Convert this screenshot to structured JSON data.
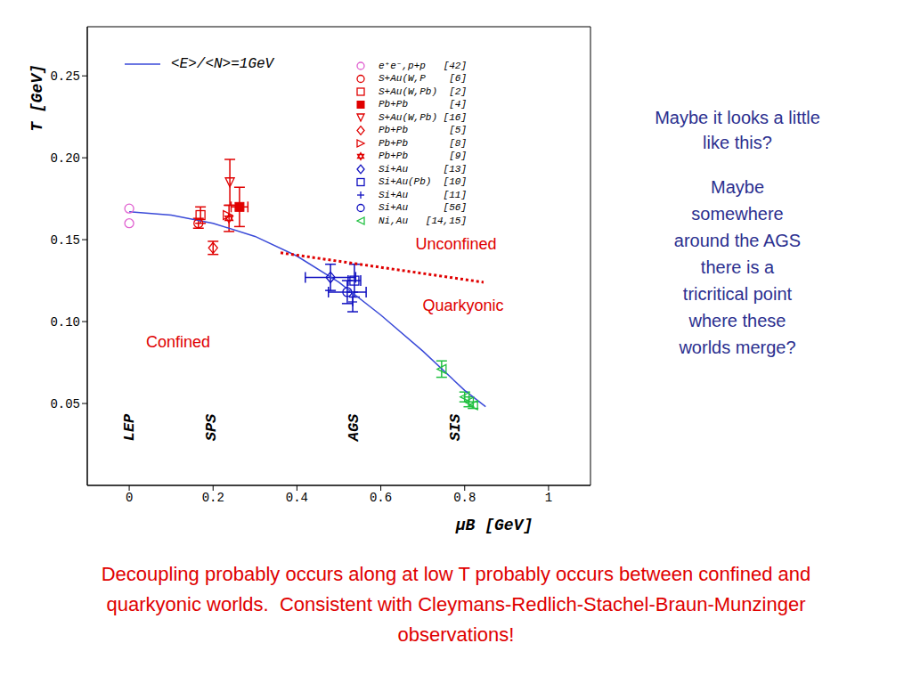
{
  "chart_data": {
    "type": "scatter",
    "x_label": "μB [GeV]",
    "y_label": "T [GeV]",
    "xlim": [
      -0.1,
      1.1
    ],
    "xticks": [
      0,
      0.2,
      0.4,
      0.6,
      0.8,
      1
    ],
    "ylim": [
      0,
      0.28
    ],
    "yticks": [
      {
        "value": 0.05,
        "label": "0.05"
      },
      {
        "value": 0.1,
        "label": "0.10"
      },
      0.15,
      {
        "value": 0.2,
        "label": "0.20"
      },
      0.25
    ],
    "series": [
      {
        "name": "<E>/<N>=1GeV",
        "type": "line",
        "color": "#3a4ad8",
        "line_style": "solid",
        "x": [
          0,
          0.1,
          0.2,
          0.3,
          0.4,
          0.5,
          0.6,
          0.7,
          0.8,
          0.85
        ],
        "values": [
          0.167,
          0.165,
          0.16,
          0.152,
          0.14,
          0.124,
          0.104,
          0.082,
          0.058,
          0.048
        ]
      },
      {
        "type": "line",
        "color": "#e00000",
        "line_style": "dotted",
        "x": [
          0.361,
          0.845
        ],
        "values": [
          0.142,
          0.124
        ]
      },
      {
        "name": "e⁺e⁻,p+p   [42]",
        "type": "scatter",
        "marker": "circle",
        "color": "#e060d0",
        "x": [
          0,
          0
        ],
        "values": [
          0.169,
          0.16
        ]
      },
      {
        "name": "S+Au(W,P    [6]",
        "type": "scatter",
        "marker": "circle",
        "color": "#e00000",
        "x": [
          0.165
        ],
        "values": [
          0.16
        ],
        "yerr": [
          0.003
        ]
      },
      {
        "name": "S+Au(W,Pb)  [2]",
        "type": "scatter",
        "marker": "square",
        "color": "#e00000",
        "x": [
          0.17
        ],
        "values": [
          0.165
        ],
        "yerr": [
          0.005
        ]
      },
      {
        "name": "Pb+Pb       [4]",
        "type": "scatter",
        "marker": "filled_square",
        "color": "#e00000",
        "x": [
          0.263
        ],
        "values": [
          0.17
        ],
        "xerr": [
          0.02
        ],
        "yerr": [
          0.012
        ]
      },
      {
        "name": "S+Au(W,Pb) [16]",
        "type": "scatter",
        "marker": "triangle_down",
        "color": "#e00000",
        "x": [
          0.24
        ],
        "values": [
          0.185
        ],
        "yerr": [
          0.014
        ]
      },
      {
        "name": "Pb+Pb       [5]",
        "type": "scatter",
        "marker": "diamond",
        "color": "#e00000",
        "x": [
          0.2
        ],
        "values": [
          0.145
        ],
        "yerr": [
          0.004
        ]
      },
      {
        "name": "Pb+Pb       [8]",
        "type": "scatter",
        "marker": "triangle_right",
        "color": "#e00000",
        "x": [
          0.235
        ],
        "values": [
          0.165
        ]
      },
      {
        "name": "Pb+Pb       [9]",
        "type": "scatter",
        "marker": "star",
        "color": "#e00000",
        "x": [
          0.238
        ],
        "values": [
          0.163
        ],
        "yerr": [
          0.008
        ]
      },
      {
        "name": "Si+Au      [13]",
        "type": "scatter",
        "marker": "diamond",
        "color": "#1010c0",
        "x": [
          0.48
        ],
        "values": [
          0.127
        ],
        "xerr": [
          0.06
        ],
        "yerr": [
          0.008
        ]
      },
      {
        "name": "Si+Au(Pb)  [10]",
        "type": "scatter",
        "marker": "square",
        "color": "#1010c0",
        "x": [
          0.537
        ],
        "values": [
          0.125
        ],
        "xerr": [
          0.015
        ],
        "yerr": [
          0.01
        ]
      },
      {
        "name": "Si+Au      [11]",
        "type": "scatter",
        "marker": "plus",
        "color": "#1010c0",
        "x": [
          0.533
        ],
        "values": [
          0.112
        ],
        "yerr": [
          0.006
        ]
      },
      {
        "name": "Si+Au      [56]",
        "type": "scatter",
        "marker": "circle",
        "color": "#1010c0",
        "x": [
          0.52
        ],
        "values": [
          0.118
        ],
        "xerr": [
          0.045
        ],
        "yerr": [
          0.007
        ]
      },
      {
        "name": "Ni,Au   [14,15]",
        "type": "scatter",
        "marker": "triangle_left",
        "color": "#20c040",
        "x": [
          0.745,
          0.8,
          0.81,
          0.82
        ],
        "values": [
          0.071,
          0.054,
          0.051,
          0.049
        ],
        "yerr": [
          0.005,
          0.003,
          0.003,
          0.002
        ]
      }
    ],
    "annotations": [
      "Unconfined",
      "Quarkyonic",
      "Confined"
    ],
    "accelerators": [
      "LEP",
      "SPS",
      "AGS",
      "SIS"
    ]
  },
  "side_text": [
    "Maybe it looks a little like this?",
    "Maybe somewhere around the AGS there is a tricritical point where these worlds merge?"
  ],
  "caption": "Decoupling probably occurs along at low T probably occurs between confined and quarkyonic worlds.  Consistent with Cleymans-Redlich-Stachel-Braun-Munzinger observations!"
}
